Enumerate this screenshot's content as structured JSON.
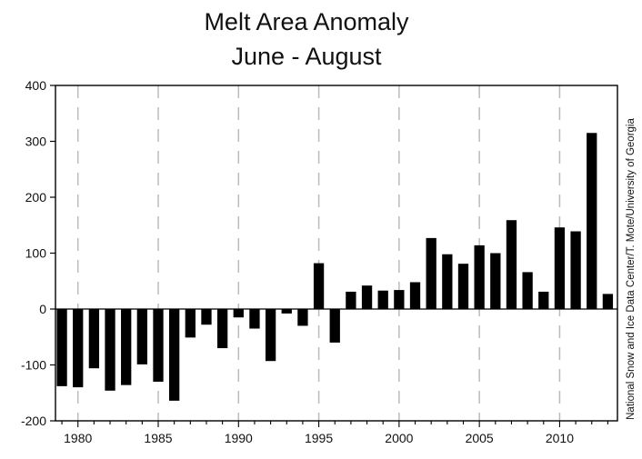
{
  "chart_data": {
    "type": "bar",
    "title": "Melt Area Anomaly",
    "subtitle": "June - August",
    "credit": "National Snow and Ice Data Center/T. Mote/University of Georgia",
    "xlabel": "",
    "ylabel": "",
    "ylim": [
      -200,
      400
    ],
    "xlim": [
      1978.6,
      2013.6
    ],
    "yticks": [
      -200,
      -100,
      0,
      100,
      200,
      300,
      400
    ],
    "xticks": [
      1980,
      1985,
      1990,
      1995,
      2000,
      2005,
      2010
    ],
    "grid": "vertical dashed at 5-year ticks",
    "x": [
      1979,
      1980,
      1981,
      1982,
      1983,
      1984,
      1985,
      1986,
      1987,
      1988,
      1989,
      1990,
      1991,
      1992,
      1993,
      1994,
      1995,
      1996,
      1997,
      1998,
      1999,
      2000,
      2001,
      2002,
      2003,
      2004,
      2005,
      2006,
      2007,
      2008,
      2009,
      2010,
      2011,
      2012,
      2013
    ],
    "values": [
      -138,
      -140,
      -106,
      -146,
      -136,
      -99,
      -130,
      -164,
      -51,
      -28,
      -70,
      -15,
      -35,
      -93,
      -8,
      -30,
      82,
      -60,
      31,
      42,
      33,
      34,
      48,
      127,
      98,
      81,
      114,
      100,
      159,
      66,
      31,
      146,
      139,
      315,
      27
    ],
    "colors": {
      "bar": "#000000",
      "axis": "#000000",
      "grid": "#bbbbbb"
    }
  }
}
